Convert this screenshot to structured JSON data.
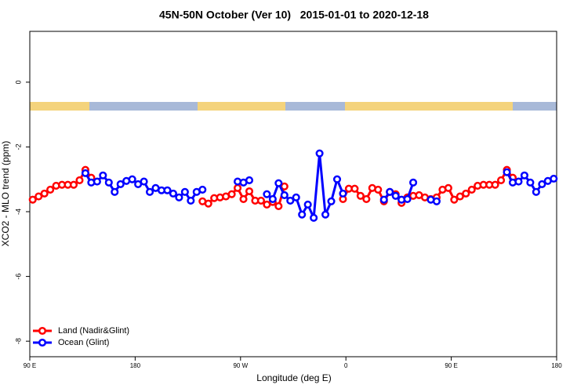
{
  "chart_data": {
    "type": "line",
    "title": "45N-50N October (Ver 10)   2015-01-01 to 2020-12-18",
    "x_label": "Longitude (deg E)",
    "y_label": "XCO2 - MLO trend (ppm)",
    "x": [
      92.5,
      97.5,
      102.5,
      107.5,
      112.5,
      117.5,
      122.5,
      127.5,
      132.5,
      137.5,
      142.5,
      147.5,
      152.5,
      157.5,
      162.5,
      167.5,
      172.5,
      177.5,
      182.5,
      187.5,
      192.5,
      197.5,
      202.5,
      207.5,
      212.5,
      217.5,
      222.5,
      227.5,
      232.5,
      237.5,
      242.5,
      247.5,
      252.5,
      257.5,
      262.5,
      267.5,
      272.5,
      277.5,
      282.5,
      287.5,
      292.5,
      297.5,
      302.5,
      307.5,
      312.5,
      317.5,
      322.5,
      327.5,
      332.5,
      337.5,
      342.5,
      347.5,
      352.5,
      357.5,
      362.5,
      367.5,
      372.5,
      377.5,
      382.5,
      387.5,
      392.5,
      397.5,
      402.5,
      407.5,
      412.5,
      417.5,
      422.5,
      427.5,
      432.5,
      437.5,
      442.5,
      447.5,
      452.5,
      457.5,
      462.5,
      467.5,
      472.5,
      477.5,
      482.5,
      487.5,
      492.5,
      497.5,
      502.5,
      507.5,
      512.5,
      517.5,
      522.5,
      527.5,
      532.5,
      537.5
    ],
    "series": [
      {
        "name": "Land (Nadir&Glint)",
        "color": "#ff0000",
        "values": [
          -3.63,
          -3.53,
          -3.44,
          -3.32,
          -3.2,
          -3.17,
          -3.17,
          -3.17,
          -3.03,
          -2.71,
          -2.95,
          null,
          null,
          null,
          null,
          null,
          null,
          null,
          null,
          null,
          null,
          null,
          null,
          null,
          null,
          null,
          null,
          null,
          null,
          -3.68,
          -3.75,
          -3.58,
          -3.56,
          -3.53,
          -3.46,
          -3.27,
          -3.61,
          -3.37,
          -3.66,
          -3.66,
          -3.78,
          -3.7,
          -3.83,
          -3.22,
          null,
          null,
          null,
          null,
          null,
          null,
          null,
          null,
          null,
          -3.61,
          -3.29,
          -3.29,
          -3.51,
          -3.61,
          -3.27,
          -3.32,
          -3.68,
          -3.39,
          -3.46,
          -3.73,
          -3.56,
          -3.51,
          -3.49,
          -3.56,
          -3.61,
          -3.56,
          -3.32,
          -3.27,
          -3.63,
          -3.53,
          -3.44,
          -3.32,
          -3.2,
          -3.17,
          -3.17,
          -3.17,
          -3.03,
          -2.71,
          -2.95,
          null,
          null,
          null,
          null,
          null,
          null,
          null
        ]
      },
      {
        "name": "Ocean (Glint)",
        "color": "#0000ff",
        "values": [
          null,
          null,
          null,
          null,
          null,
          null,
          null,
          null,
          null,
          -2.81,
          -3.1,
          -3.07,
          -2.88,
          -3.1,
          -3.39,
          -3.15,
          -3.05,
          -3.0,
          -3.15,
          -3.07,
          -3.39,
          -3.27,
          -3.34,
          -3.34,
          -3.44,
          -3.56,
          -3.39,
          -3.66,
          -3.39,
          -3.32,
          null,
          null,
          null,
          null,
          null,
          -3.07,
          -3.1,
          -3.03,
          null,
          null,
          -3.46,
          -3.61,
          -3.12,
          -3.49,
          -3.66,
          -3.56,
          -4.09,
          -3.78,
          -4.19,
          -2.2,
          -4.09,
          -3.68,
          -3.0,
          -3.44,
          null,
          null,
          null,
          null,
          null,
          null,
          -3.63,
          -3.39,
          -3.51,
          -3.63,
          -3.61,
          -3.1,
          null,
          null,
          -3.63,
          -3.68,
          null,
          null,
          null,
          null,
          null,
          null,
          null,
          null,
          null,
          null,
          null,
          -2.78,
          -3.1,
          -3.07,
          -2.88,
          -3.1,
          -3.39,
          -3.15,
          -3.05,
          -2.98
        ]
      }
    ],
    "xlim": [
      90,
      540
    ],
    "xticks": [
      {
        "value": 90,
        "label": "90 E"
      },
      180,
      {
        "value": 270,
        "label": "90 W"
      },
      {
        "value": 360,
        "label": "0"
      },
      {
        "value": 450,
        "label": "90 E"
      },
      {
        "value": 540,
        "label": "180"
      }
    ],
    "ylim": [
      -8.48,
      1.57
    ],
    "yticks": [
      0,
      -2,
      -4,
      -6,
      -8
    ],
    "grid": false,
    "legend": "bottom-left"
  }
}
